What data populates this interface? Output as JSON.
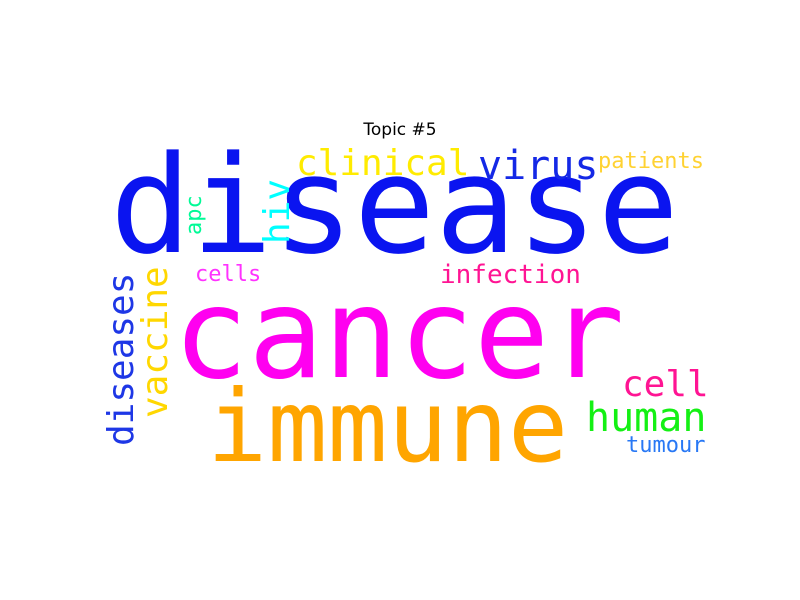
{
  "title": "Topic #5",
  "words": [
    {
      "key": "disease",
      "text": "disease",
      "color": "#0a14f0",
      "orientation": "horizontal"
    },
    {
      "key": "cancer",
      "text": "cancer",
      "color": "#ff00f0",
      "orientation": "horizontal"
    },
    {
      "key": "immune",
      "text": "immune",
      "color": "#ffa500",
      "orientation": "horizontal"
    },
    {
      "key": "clinical",
      "text": "clinical",
      "color": "#ffeb00",
      "orientation": "horizontal"
    },
    {
      "key": "virus",
      "text": "virus",
      "color": "#1428e6",
      "orientation": "horizontal"
    },
    {
      "key": "patients",
      "text": "patients",
      "color": "#ffd232",
      "orientation": "horizontal"
    },
    {
      "key": "hiv",
      "text": "hiv",
      "color": "#00ffff",
      "orientation": "vertical"
    },
    {
      "key": "apc",
      "text": "apc",
      "color": "#00fa96",
      "orientation": "vertical"
    },
    {
      "key": "cells",
      "text": "cells",
      "color": "#ff32ff",
      "orientation": "horizontal"
    },
    {
      "key": "infection",
      "text": "infection",
      "color": "#ff1493",
      "orientation": "horizontal"
    },
    {
      "key": "diseases",
      "text": "diseases",
      "color": "#1e37e6",
      "orientation": "vertical"
    },
    {
      "key": "vaccine",
      "text": "vaccine",
      "color": "#ffd700",
      "orientation": "vertical"
    },
    {
      "key": "cell",
      "text": "cell",
      "color": "#ff1493",
      "orientation": "horizontal"
    },
    {
      "key": "human",
      "text": "human",
      "color": "#14f014",
      "orientation": "horizontal"
    },
    {
      "key": "tumour",
      "text": "tumour",
      "color": "#2878f5",
      "orientation": "horizontal"
    }
  ]
}
